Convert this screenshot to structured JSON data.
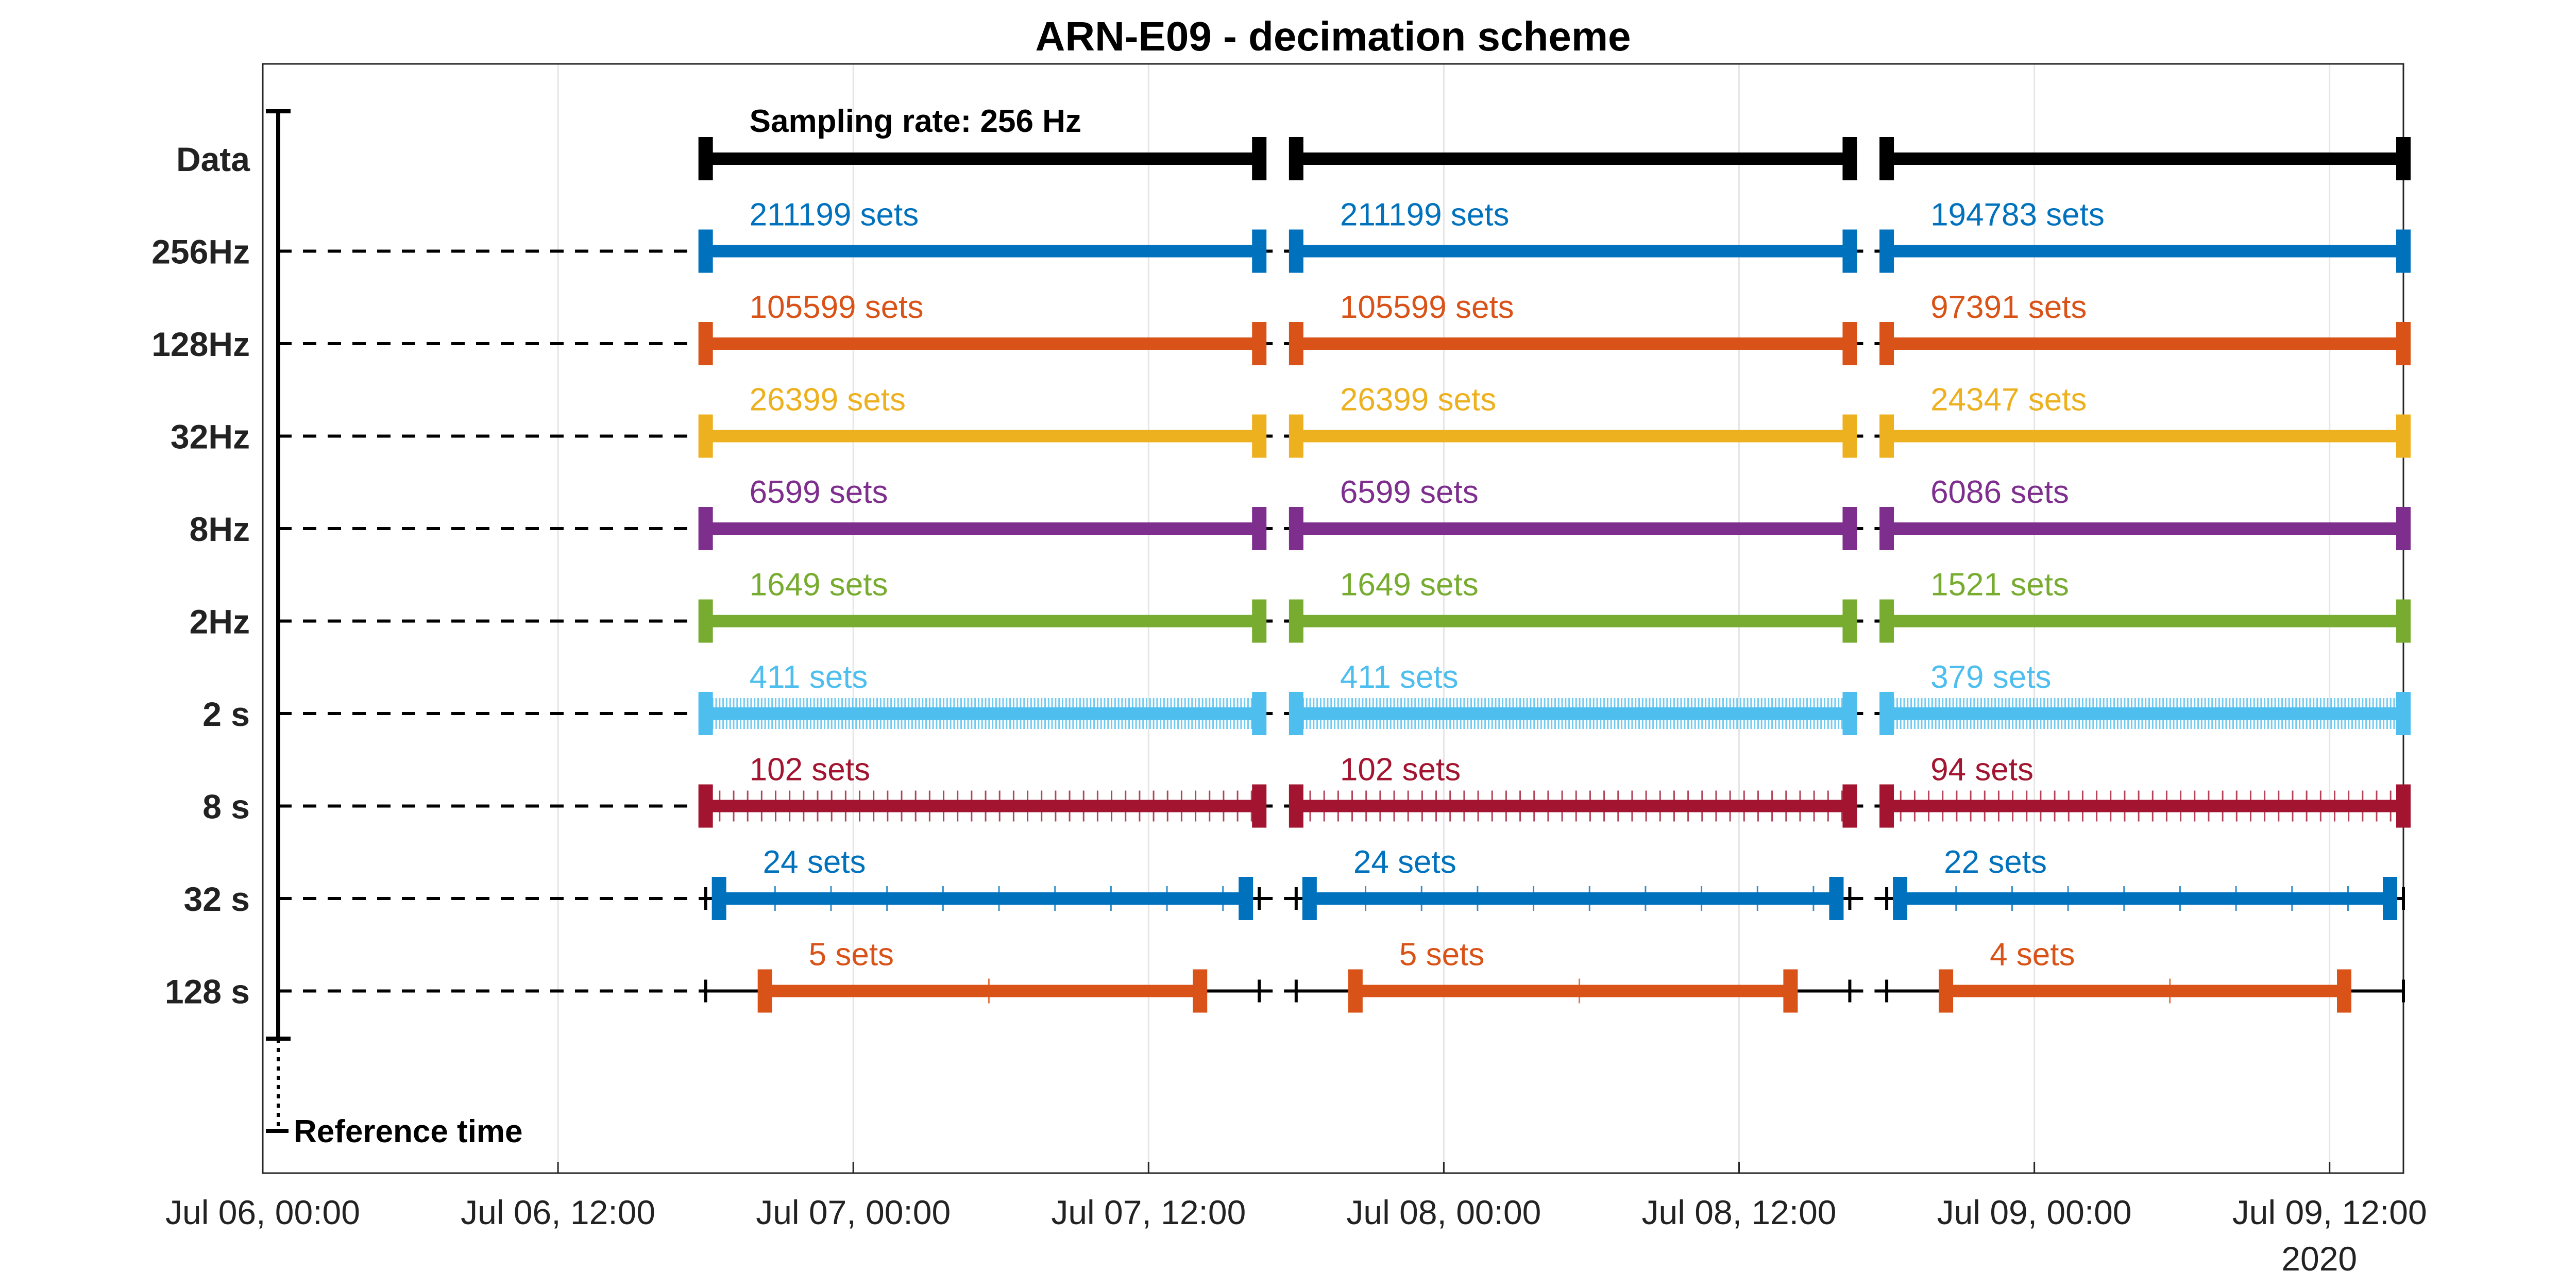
{
  "chart_data": {
    "type": "timeline",
    "title": "ARN-E09 - decimation scheme",
    "x_axis": {
      "type": "time",
      "range": [
        "2020-07-06T00:00",
        "2020-07-09T15:00"
      ],
      "ticks": [
        {
          "t": "2020-07-06T00:00",
          "label": "Jul 06, 00:00"
        },
        {
          "t": "2020-07-06T12:00",
          "label": "Jul 06, 12:00"
        },
        {
          "t": "2020-07-07T00:00",
          "label": "Jul 07, 00:00"
        },
        {
          "t": "2020-07-07T12:00",
          "label": "Jul 07, 12:00"
        },
        {
          "t": "2020-07-08T00:00",
          "label": "Jul 08, 00:00"
        },
        {
          "t": "2020-07-08T12:00",
          "label": "Jul 08, 12:00"
        },
        {
          "t": "2020-07-09T00:00",
          "label": "Jul 09, 00:00"
        },
        {
          "t": "2020-07-09T12:00",
          "label": "Jul 09, 12:00"
        }
      ],
      "year_label": "2020",
      "grid": true
    },
    "rows": [
      "Data",
      "256Hz",
      "128Hz",
      "32Hz",
      "8Hz",
      "2Hz",
      "2 s",
      "8 s",
      "32 s",
      "128 s"
    ],
    "colors": {
      "Data": "#000000",
      "256Hz": "#0072BD",
      "128Hz": "#D95319",
      "32Hz": "#EDB120",
      "8Hz": "#7E2F8E",
      "2Hz": "#77AC30",
      "2 s": "#4DBEEE",
      "8 s": "#A2142F",
      "32 s": "#0072BD",
      "128 s": "#D95319"
    },
    "segments": [
      {
        "start": "2020-07-06T18:00",
        "end": "2020-07-07T16:30"
      },
      {
        "start": "2020-07-07T18:00",
        "end": "2020-07-08T16:30"
      },
      {
        "start": "2020-07-08T18:00",
        "end": "2020-07-09T15:00"
      }
    ],
    "sets": {
      "256Hz": [
        "211199 sets",
        "211199 sets",
        "194783 sets"
      ],
      "128Hz": [
        "105599 sets",
        "105599 sets",
        "97391 sets"
      ],
      "32Hz": [
        "26399 sets",
        "26399 sets",
        "24347 sets"
      ],
      "8Hz": [
        "6599 sets",
        "6599 sets",
        "6086 sets"
      ],
      "2Hz": [
        "1649 sets",
        "1649 sets",
        "1521 sets"
      ],
      "2 s": [
        "411 sets",
        "411 sets",
        "379 sets"
      ],
      "8 s": [
        "102 sets",
        "102 sets",
        "94 sets"
      ],
      "32 s": [
        "24 sets",
        "24 sets",
        "22 sets"
      ],
      "128 s": [
        "5 sets",
        "5 sets",
        "4 sets"
      ]
    },
    "data_label": "Sampling rate: 256 Hz",
    "reference_label": "Reference time"
  }
}
